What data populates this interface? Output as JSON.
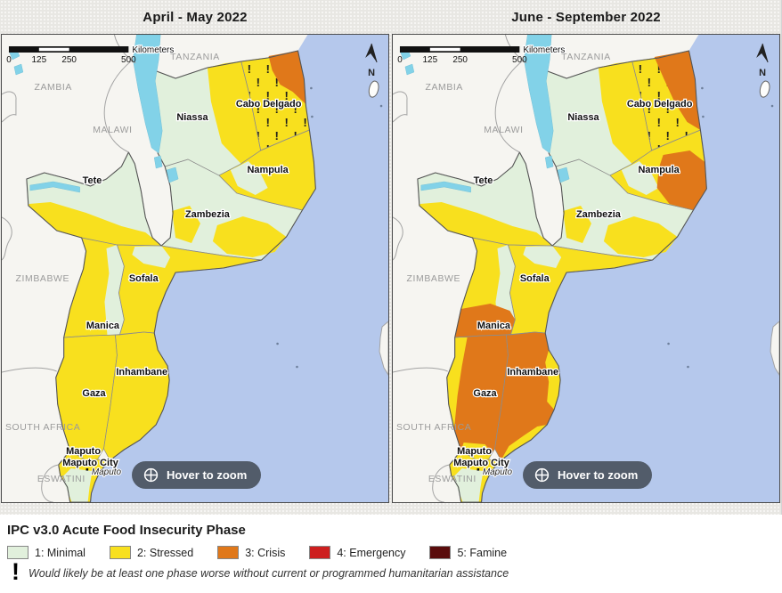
{
  "panels": [
    {
      "title": "April - May 2022",
      "phases": {
        "niassa": "minimal",
        "niassa_ne": "stressed",
        "cabo_delgado": "stressed",
        "cabo_delgado_ne": "crisis",
        "nampula": "stressed",
        "nampula_w": "minimal",
        "tete": "minimal",
        "tete_s": "stressed",
        "zambezia": "minimal",
        "zambezia_c1": "stressed",
        "zambezia_c2": "stressed",
        "sofala": "stressed",
        "sofala_n": "minimal",
        "manica": "stressed",
        "manica_e": "minimal",
        "inhambane": "stressed",
        "gaza": "stressed",
        "maputo": "stressed",
        "maputo_s": "minimal"
      }
    },
    {
      "title": "June - September 2022",
      "phases": {
        "niassa": "minimal",
        "niassa_ne": "stressed",
        "cabo_delgado": "stressed",
        "cabo_delgado_ne_big": "crisis",
        "nampula": "stressed",
        "nampula_w": "minimal",
        "nampula_e": "crisis",
        "tete": "minimal",
        "tete_s": "stressed",
        "zambezia": "minimal",
        "zambezia_c1": "stressed",
        "zambezia_c2": "stressed",
        "sofala": "stressed",
        "sofala_n": "minimal",
        "manica": "stressed",
        "manica_e": "minimal",
        "manica_s": "crisis",
        "inhambane": "crisis",
        "inhambane_e": "stressed",
        "inhambane_s": "stressed",
        "gaza": "crisis",
        "gaza_w": "stressed",
        "gaza_s": "stressed",
        "maputo": "stressed",
        "maputo_s": "minimal"
      }
    }
  ],
  "phase_colors": {
    "minimal": "#e1f0dc",
    "stressed": "#f8e01e",
    "crisis": "#e0781a",
    "emergency": "#cd1f1f",
    "famine": "#5a0c0c"
  },
  "map_colors": {
    "ocean": "#b5c8ec",
    "land": "#f6f5f1",
    "lake": "#82d2e8",
    "neighbor_border": "#a3a3a3",
    "province_border": "#8c8c8c",
    "outline": "#555555"
  },
  "map_labels": {
    "countries": [
      "TANZANIA",
      "ZAMBIA",
      "MALAWI",
      "ZIMBABWE",
      "SOUTH AFRICA",
      "ESWATINI"
    ],
    "provinces": [
      "Niassa",
      "Cabo Delgado",
      "Nampula",
      "Tete",
      "Zambezia",
      "Sofala",
      "Manica",
      "Inhambane",
      "Gaza",
      "Maputo",
      "Maputo City"
    ],
    "city": "Maputo"
  },
  "scalebar": {
    "ticks": [
      "0",
      "125",
      "250",
      "500"
    ],
    "unit": "Kilometers"
  },
  "north_label": "N",
  "hover_button": {
    "label": "Hover to zoom",
    "icon": "crosshair-zoom-icon"
  },
  "legend": {
    "title": "IPC v3.0 Acute Food Insecurity Phase",
    "items": [
      {
        "label": "1: Minimal",
        "phase": "minimal"
      },
      {
        "label": "2: Stressed",
        "phase": "stressed"
      },
      {
        "label": "3: Crisis",
        "phase": "crisis"
      },
      {
        "label": "4: Emergency",
        "phase": "emergency"
      },
      {
        "label": "5: Famine",
        "phase": "famine"
      }
    ],
    "footnote_mark": "!",
    "footnote": "Would likely be at least one phase worse without current or programmed humanitarian assistance"
  }
}
